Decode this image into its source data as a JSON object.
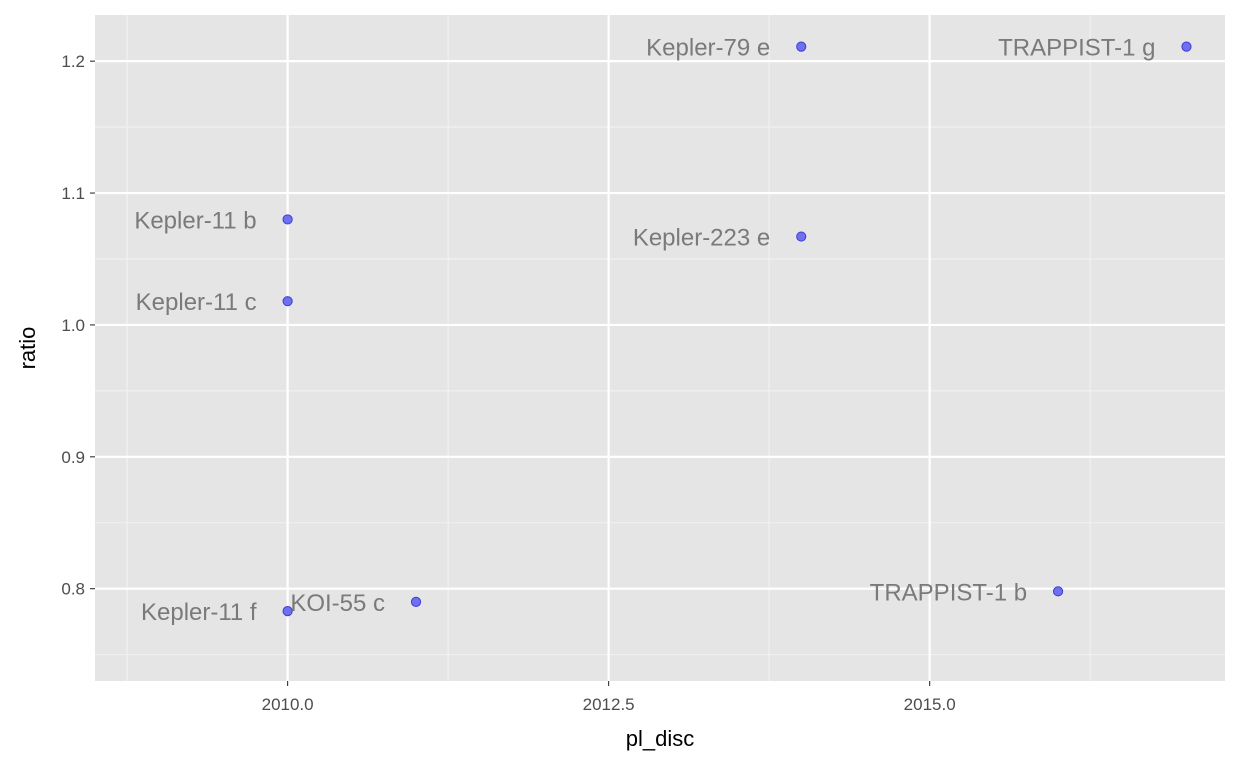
{
  "chart_data": {
    "type": "scatter",
    "title": "",
    "xlabel": "pl_disc",
    "ylabel": "ratio",
    "xlim": [
      2008.5,
      2017.3
    ],
    "ylim": [
      0.73,
      1.235
    ],
    "x_ticks": [
      {
        "value": 2010.0,
        "label": "2010.0"
      },
      {
        "value": 2012.5,
        "label": "2012.5"
      },
      {
        "value": 2015.0,
        "label": "2015.0"
      }
    ],
    "y_ticks": [
      {
        "value": 0.8,
        "label": "0.8"
      },
      {
        "value": 0.9,
        "label": "0.9"
      },
      {
        "value": 1.0,
        "label": "1.0"
      },
      {
        "value": 1.1,
        "label": "1.1"
      },
      {
        "value": 1.2,
        "label": "1.2"
      }
    ],
    "grid": true,
    "points": [
      {
        "x": 2014,
        "y": 1.211,
        "label": "Kepler-79 e"
      },
      {
        "x": 2017,
        "y": 1.211,
        "label": "TRAPPIST-1 g"
      },
      {
        "x": 2010,
        "y": 1.08,
        "label": "Kepler-11 b"
      },
      {
        "x": 2014,
        "y": 1.067,
        "label": "Kepler-223 e"
      },
      {
        "x": 2010,
        "y": 1.018,
        "label": "Kepler-11 c"
      },
      {
        "x": 2016,
        "y": 0.798,
        "label": "TRAPPIST-1 b"
      },
      {
        "x": 2011,
        "y": 0.79,
        "label": "KOI-55 c"
      },
      {
        "x": 2010,
        "y": 0.783,
        "label": "Kepler-11 f"
      }
    ],
    "colors": {
      "panel_background": "#e5e5e5",
      "grid_major": "#ffffff",
      "grid_minor": "#f2f2f2",
      "point_fill": "#7070ee",
      "point_stroke": "#3b3bdc",
      "label_text": "#7a7a7a"
    }
  }
}
